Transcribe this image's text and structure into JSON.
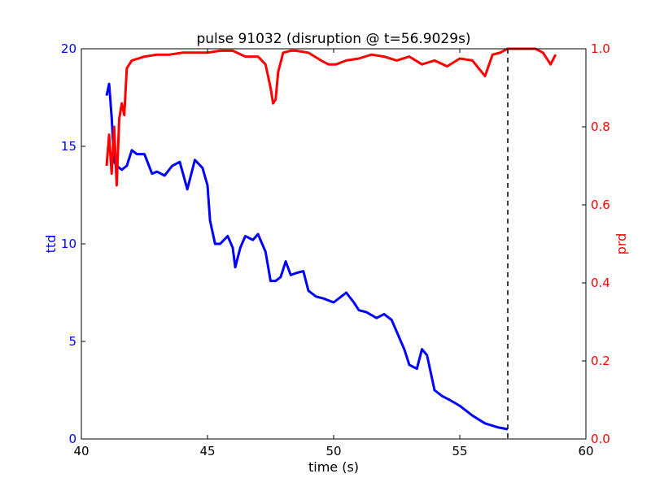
{
  "chart_data": {
    "type": "line",
    "title": "pulse 91032 (disruption @ t=56.9029s)",
    "xlabel": "time (s)",
    "ylabel_left": "ttd",
    "ylabel_right": "prd",
    "xlim": [
      40,
      60
    ],
    "ylim_left": [
      0,
      20
    ],
    "ylim_right": [
      0.0,
      1.0
    ],
    "x_ticks": [
      "40",
      "45",
      "50",
      "55",
      "60"
    ],
    "y_left_ticks": [
      "0",
      "5",
      "10",
      "15",
      "20"
    ],
    "y_right_ticks": [
      "0.0",
      "0.2",
      "0.4",
      "0.6",
      "0.8",
      "1.0"
    ],
    "grid": false,
    "disruption_time": 56.9029,
    "colors": {
      "left_axis": "#0000ff",
      "right_axis": "#ff0000",
      "marker_line": "#000000"
    },
    "series": [
      {
        "axis": "left",
        "color": "#0000ff",
        "x": [
          41.0,
          41.1,
          41.2,
          41.3,
          41.4,
          41.6,
          41.8,
          42.0,
          42.2,
          42.5,
          42.8,
          43.0,
          43.3,
          43.6,
          43.9,
          44.2,
          44.5,
          44.8,
          45.0,
          45.1,
          45.3,
          45.5,
          45.8,
          46.0,
          46.1,
          46.3,
          46.5,
          46.8,
          47.0,
          47.3,
          47.5,
          47.7,
          47.9,
          48.1,
          48.3,
          48.5,
          48.8,
          49.0,
          49.3,
          49.6,
          50.0,
          50.5,
          50.8,
          51.0,
          51.3,
          51.7,
          52.0,
          52.3,
          52.5,
          52.8,
          53.0,
          53.3,
          53.5,
          53.7,
          54.0,
          54.3,
          54.6,
          55.0,
          55.5,
          56.0,
          56.5,
          56.9
        ],
        "y": [
          17.6,
          18.2,
          16.5,
          14.2,
          14.0,
          13.8,
          14.0,
          14.8,
          14.6,
          14.6,
          13.6,
          13.7,
          13.5,
          14.0,
          14.2,
          12.8,
          14.3,
          13.9,
          13.0,
          11.2,
          10.0,
          10.0,
          10.4,
          9.8,
          8.8,
          9.8,
          10.4,
          10.2,
          10.5,
          9.6,
          8.1,
          8.1,
          8.3,
          9.1,
          8.4,
          8.5,
          8.6,
          7.6,
          7.3,
          7.2,
          7.0,
          7.5,
          7.0,
          6.6,
          6.5,
          6.2,
          6.4,
          6.1,
          5.5,
          4.6,
          3.8,
          3.6,
          4.6,
          4.3,
          2.5,
          2.2,
          2.0,
          1.7,
          1.2,
          0.8,
          0.6,
          0.5
        ]
      },
      {
        "axis": "right",
        "color": "#ff0000",
        "x": [
          41.0,
          41.1,
          41.2,
          41.3,
          41.4,
          41.5,
          41.6,
          41.7,
          41.8,
          42.0,
          42.5,
          43.0,
          43.5,
          44.0,
          44.5,
          45.0,
          45.5,
          46.0,
          46.5,
          47.0,
          47.3,
          47.5,
          47.6,
          47.7,
          47.8,
          48.0,
          48.3,
          48.5,
          49.0,
          49.5,
          49.8,
          50.1,
          50.5,
          51.0,
          51.5,
          52.0,
          52.5,
          53.0,
          53.5,
          54.0,
          54.5,
          55.0,
          55.5,
          56.0,
          56.3,
          56.6,
          56.9,
          57.0,
          57.5,
          58.0,
          58.3,
          58.6,
          58.8
        ],
        "y": [
          0.7,
          0.78,
          0.68,
          0.8,
          0.65,
          0.82,
          0.86,
          0.83,
          0.95,
          0.97,
          0.98,
          0.985,
          0.985,
          0.99,
          0.99,
          0.99,
          0.995,
          0.995,
          0.98,
          0.98,
          0.96,
          0.9,
          0.86,
          0.87,
          0.94,
          0.99,
          0.995,
          0.995,
          0.99,
          0.97,
          0.96,
          0.96,
          0.97,
          0.975,
          0.985,
          0.98,
          0.97,
          0.98,
          0.96,
          0.97,
          0.955,
          0.975,
          0.97,
          0.93,
          0.985,
          0.99,
          1.0,
          1.0,
          1.0,
          1.0,
          0.99,
          0.96,
          0.985
        ]
      }
    ]
  }
}
